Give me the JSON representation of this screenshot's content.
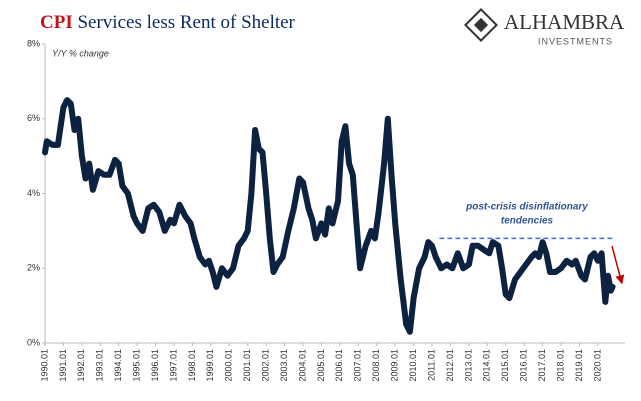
{
  "chart_data": {
    "type": "line",
    "title": [
      "CPI",
      "Services less Rent of Shelter"
    ],
    "logo": {
      "name": "ALHAMBRA",
      "subtitle": "INVESTMENTS"
    },
    "ylabel": "Y/Y % change",
    "annotation": [
      "post-crisis disinflationary",
      "tendencies"
    ],
    "reference_line": {
      "value": 2.8,
      "x": [
        2011.4,
        2020.9
      ]
    },
    "xlim": [
      1990,
      2021.2
    ],
    "ylim": [
      0,
      8
    ],
    "yticks": [
      {
        "value": 0,
        "label": "0%"
      },
      {
        "value": 2,
        "label": "2%"
      },
      {
        "value": 4,
        "label": "4%"
      },
      {
        "value": 6,
        "label": "6%"
      },
      {
        "value": 8,
        "label": "8%"
      }
    ],
    "xticks": [
      {
        "value": 1990,
        "label": "1990.01"
      },
      {
        "value": 1991,
        "label": "1991.01"
      },
      {
        "value": 1992,
        "label": "1992.01"
      },
      {
        "value": 1993,
        "label": "1993.01"
      },
      {
        "value": 1994,
        "label": "1994.01"
      },
      {
        "value": 1995,
        "label": "1995.01"
      },
      {
        "value": 1996,
        "label": "1996.01"
      },
      {
        "value": 1997,
        "label": "1997.01"
      },
      {
        "value": 1998,
        "label": "1998.01"
      },
      {
        "value": 1999,
        "label": "1999.01"
      },
      {
        "value": 2000,
        "label": "2000.01"
      },
      {
        "value": 2001,
        "label": "2001.01"
      },
      {
        "value": 2002,
        "label": "2002.01"
      },
      {
        "value": 2003,
        "label": "2003.01"
      },
      {
        "value": 2004,
        "label": "2004.01"
      },
      {
        "value": 2005,
        "label": "2005.01"
      },
      {
        "value": 2006,
        "label": "2006.01"
      },
      {
        "value": 2007,
        "label": "2007.01"
      },
      {
        "value": 2008,
        "label": "2008.01"
      },
      {
        "value": 2009,
        "label": "2009.01"
      },
      {
        "value": 2010,
        "label": "2010.01"
      },
      {
        "value": 2011,
        "label": "2011.01"
      },
      {
        "value": 2012,
        "label": "2012.01"
      },
      {
        "value": 2013,
        "label": "2013.01"
      },
      {
        "value": 2014,
        "label": "2014.01"
      },
      {
        "value": 2015,
        "label": "2015.01"
      },
      {
        "value": 2016,
        "label": "2016.01"
      },
      {
        "value": 2017,
        "label": "2017.01"
      },
      {
        "value": 2018,
        "label": "2018.01"
      },
      {
        "value": 2019,
        "label": "2019.01"
      },
      {
        "value": 2020,
        "label": "2020.01"
      }
    ],
    "grid": false,
    "color": "#0d2240",
    "x": [
      1990.0,
      1990.1,
      1990.4,
      1990.7,
      1991.0,
      1991.2,
      1991.4,
      1991.6,
      1991.8,
      1992.0,
      1992.2,
      1992.4,
      1992.6,
      1992.9,
      1993.2,
      1993.5,
      1993.8,
      1994.0,
      1994.2,
      1994.5,
      1994.8,
      1995.0,
      1995.3,
      1995.6,
      1995.9,
      1996.2,
      1996.5,
      1996.8,
      1997.0,
      1997.3,
      1997.6,
      1997.9,
      1998.1,
      1998.4,
      1998.7,
      1998.9,
      1999.1,
      1999.3,
      1999.6,
      1999.9,
      2000.2,
      2000.5,
      2000.8,
      2001.0,
      2001.2,
      2001.4,
      2001.6,
      2001.8,
      2002.0,
      2002.2,
      2002.4,
      2002.6,
      2002.9,
      2003.2,
      2003.5,
      2003.8,
      2004.0,
      2004.3,
      2004.5,
      2004.7,
      2005.0,
      2005.2,
      2005.4,
      2005.6,
      2005.9,
      2006.1,
      2006.3,
      2006.5,
      2006.7,
      2006.9,
      2007.1,
      2007.4,
      2007.7,
      2007.9,
      2008.1,
      2008.4,
      2008.6,
      2008.8,
      2009.0,
      2009.3,
      2009.6,
      2009.8,
      2010.0,
      2010.3,
      2010.6,
      2010.8,
      2011.0,
      2011.2,
      2011.5,
      2011.8,
      2012.1,
      2012.4,
      2012.7,
      2013.0,
      2013.2,
      2013.5,
      2013.8,
      2014.1,
      2014.3,
      2014.6,
      2014.8,
      2015.0,
      2015.2,
      2015.5,
      2015.8,
      2016.1,
      2016.4,
      2016.6,
      2016.8,
      2017.0,
      2017.2,
      2017.4,
      2017.7,
      2018.0,
      2018.3,
      2018.6,
      2018.8,
      2019.1,
      2019.3,
      2019.6,
      2019.8,
      2020.0,
      2020.2,
      2020.4,
      2020.55,
      2020.7,
      2020.8
    ],
    "values": [
      5.1,
      5.4,
      5.3,
      5.3,
      6.3,
      6.5,
      6.4,
      5.7,
      6.0,
      5.0,
      4.4,
      4.8,
      4.1,
      4.6,
      4.5,
      4.5,
      4.9,
      4.8,
      4.2,
      4.0,
      3.4,
      3.2,
      3.0,
      3.6,
      3.7,
      3.5,
      3.0,
      3.3,
      3.2,
      3.7,
      3.4,
      3.2,
      2.8,
      2.3,
      2.1,
      2.2,
      1.9,
      1.5,
      2.0,
      1.8,
      2.0,
      2.6,
      2.8,
      3.0,
      4.0,
      5.7,
      5.2,
      5.1,
      4.0,
      2.8,
      1.9,
      2.1,
      2.3,
      3.0,
      3.6,
      4.4,
      4.3,
      3.6,
      3.3,
      2.8,
      3.2,
      2.9,
      3.6,
      3.2,
      3.8,
      5.4,
      5.8,
      4.8,
      4.5,
      3.2,
      2.0,
      2.6,
      3.0,
      2.8,
      3.5,
      4.8,
      6.0,
      4.5,
      3.2,
      1.7,
      0.5,
      0.3,
      1.2,
      2.0,
      2.3,
      2.7,
      2.6,
      2.3,
      2.0,
      2.1,
      2.0,
      2.4,
      2.0,
      2.1,
      2.6,
      2.6,
      2.5,
      2.4,
      2.7,
      2.6,
      2.0,
      1.3,
      1.2,
      1.7,
      1.9,
      2.1,
      2.3,
      2.4,
      2.3,
      2.7,
      2.4,
      1.9,
      1.9,
      2.0,
      2.2,
      2.1,
      2.2,
      1.8,
      1.7,
      2.3,
      2.4,
      2.2,
      2.4,
      1.1,
      1.8,
      1.4,
      1.5
    ]
  }
}
